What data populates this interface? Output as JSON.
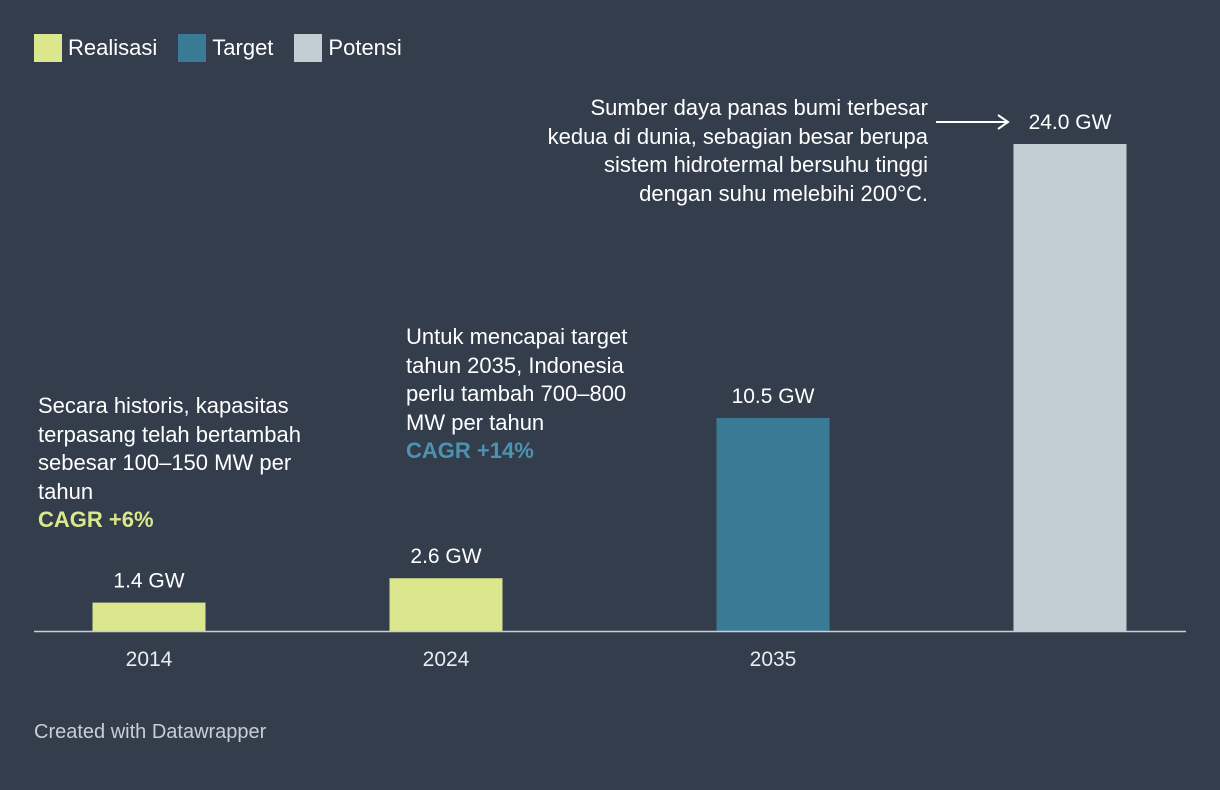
{
  "legend": [
    {
      "label": "Realisasi",
      "color": "#dbe78c"
    },
    {
      "label": "Target",
      "color": "#3a7a94"
    },
    {
      "label": "Potensi",
      "color": "#c3ced4"
    }
  ],
  "chart_data": {
    "type": "bar",
    "categories": [
      "2014",
      "2024",
      "2035",
      ""
    ],
    "values": [
      1.4,
      2.6,
      10.5,
      24.0
    ],
    "value_labels": [
      "1.4 GW",
      "2.6 GW",
      "10.5 GW",
      "24.0 GW"
    ],
    "bar_types": [
      "Realisasi",
      "Realisasi",
      "Target",
      "Potensi"
    ],
    "ylim": [
      0,
      24
    ],
    "grid": false,
    "legend_placement": "top-left"
  },
  "annotations": {
    "historic": {
      "text": "Secara historis, kapasitas terpasang telah bertambah sebesar 100–150 MW per tahun",
      "cagr": "CAGR +6%",
      "cagr_color": "#dbe78c"
    },
    "target": {
      "text": "Untuk mencapai target tahun 2035, Indonesia perlu tambah 700–800 MW per tahun",
      "cagr": "CAGR +14%",
      "cagr_color": "#4c93b2"
    },
    "potential": {
      "text": "Sumber daya panas bumi terbesar kedua di dunia, sebagian besar berupa sistem hidrotermal bersuhu tinggi dengan suhu melebihi 200°C."
    }
  },
  "footer": "Created with Datawrapper"
}
